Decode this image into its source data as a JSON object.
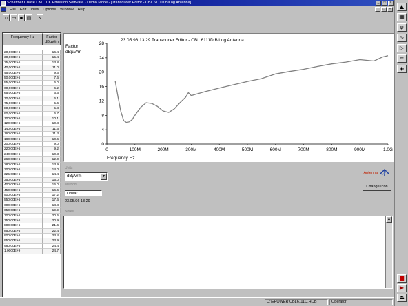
{
  "window": {
    "title": "Schaffner Chase CMT TIK Emission Software - Demo Mode - [Transducer Editor - CBL 6111D BiLog Antenna]",
    "buttons": [
      "_",
      "□",
      "×"
    ]
  },
  "menu": {
    "items": [
      "File",
      "Edit",
      "View",
      "Options",
      "Window",
      "Help"
    ],
    "mdi_buttons": [
      "_",
      "□",
      "×"
    ]
  },
  "toolbar": {
    "buttons": [
      "new-icon",
      "open-icon",
      "save-icon",
      "print-icon",
      "help-icon"
    ]
  },
  "right_strip": {
    "tools": [
      "pointer-icon",
      "receiver-icon",
      "antenna-icon",
      "cable-icon",
      "amplifier-icon",
      "limit-icon",
      "transducer-icon"
    ],
    "bottom_icons": [
      "stop-icon",
      "run-icon",
      "exit-icon"
    ]
  },
  "table": {
    "header": {
      "freq": "Frequency Hz",
      "factor": "Factor dBµV/m"
    },
    "rows": [
      [
        "20,000E+6",
        "16.4"
      ],
      [
        "30,000E+6",
        "15.4"
      ],
      [
        "35,000E+6",
        "13.8"
      ],
      [
        "40,000E+6",
        "11.0"
      ],
      [
        "45,000E+6",
        "9.6"
      ],
      [
        "50,000E+6",
        "7.6"
      ],
      [
        "55,000E+6",
        "6.0"
      ],
      [
        "60,000E+6",
        "6.2"
      ],
      [
        "65,000E+6",
        "6.6"
      ],
      [
        "70,000E+6",
        "6.1"
      ],
      [
        "75,000E+6",
        "5.6"
      ],
      [
        "80,000E+6",
        "5.8"
      ],
      [
        "90,000E+6",
        "6.7"
      ],
      [
        "100,00E+6",
        "10.1"
      ],
      [
        "120,00E+6",
        "10.8"
      ],
      [
        "140,00E+6",
        "11.6"
      ],
      [
        "160,00E+6",
        "11.3"
      ],
      [
        "180,00E+6",
        "10.6"
      ],
      [
        "200,00E+6",
        "9.0"
      ],
      [
        "220,00E+6",
        "9.2"
      ],
      [
        "240,00E+6",
        "10.3"
      ],
      [
        "260,00E+6",
        "12.0"
      ],
      [
        "280,00E+6",
        "13.9"
      ],
      [
        "300,00E+6",
        "14.0"
      ],
      [
        "325,00E+6",
        "14.4"
      ],
      [
        "350,00E+6",
        "15.0"
      ],
      [
        "400,00E+6",
        "16.0"
      ],
      [
        "450,00E+6",
        "16.6"
      ],
      [
        "500,00E+6",
        "17.2"
      ],
      [
        "550,00E+6",
        "17.6"
      ],
      [
        "600,00E+6",
        "18.8"
      ],
      [
        "650,00E+6",
        "19.9"
      ],
      [
        "700,00E+6",
        "20.6"
      ],
      [
        "750,00E+6",
        "20.9"
      ],
      [
        "800,00E+6",
        "21.6"
      ],
      [
        "850,00E+6",
        "22.4"
      ],
      [
        "900,00E+6",
        "23.4"
      ],
      [
        "950,00E+6",
        "23.9"
      ],
      [
        "980,00E+6",
        "24.4"
      ],
      [
        "1,0000E+9",
        "24.7"
      ]
    ]
  },
  "chart_data": {
    "type": "line",
    "title": "23.05.96 13:29 Transducer Editor - CBL 6111D BiLog Antenna",
    "ylabel": "Factor dBµV/m",
    "xlabel": "Frequency Hz",
    "ylim": [
      0,
      28
    ],
    "yticks": [
      0,
      4,
      8,
      12,
      16,
      20,
      24,
      28
    ],
    "xlim": [
      0,
      1000
    ],
    "xticks": [
      "0",
      "100M",
      "200M",
      "300M",
      "400M",
      "500M",
      "600M",
      "700M",
      "800M",
      "900M",
      "1.0G"
    ],
    "x_unit": "MHz",
    "grid": false,
    "line_color": "#808080",
    "series": [
      {
        "x": [
          30,
          40,
          50,
          60,
          70,
          80,
          90,
          100,
          120,
          140,
          160,
          180,
          200,
          220,
          240,
          260,
          280,
          290,
          300,
          350,
          400,
          450,
          500,
          550,
          600,
          650,
          700,
          750,
          800,
          850,
          900,
          950,
          980,
          1000
        ],
        "y": [
          17.5,
          13,
          9,
          6.5,
          6.0,
          6.2,
          6.8,
          8.0,
          10.2,
          11.5,
          11.3,
          10.5,
          9.2,
          8.8,
          9.8,
          11.5,
          13.0,
          14.3,
          13.5,
          14.6,
          15.6,
          16.5,
          17.4,
          18.2,
          19.5,
          20.2,
          20.8,
          21.6,
          22.3,
          22.8,
          23.5,
          23.1,
          24.2,
          24.6
        ]
      }
    ]
  },
  "controls": {
    "units_label": "Units",
    "units_value": "dBµV/m",
    "method_label": "Method",
    "method_value": "Linear",
    "cal_date_value": "23.05.96 13:29",
    "notes_label": "Notes",
    "antenna_label": "Antenna",
    "change_icon_label": "Change Icon"
  },
  "statusbar": {
    "path": "C:\\EPOWER\\CBL6111D.HOB",
    "user": "Operator"
  }
}
